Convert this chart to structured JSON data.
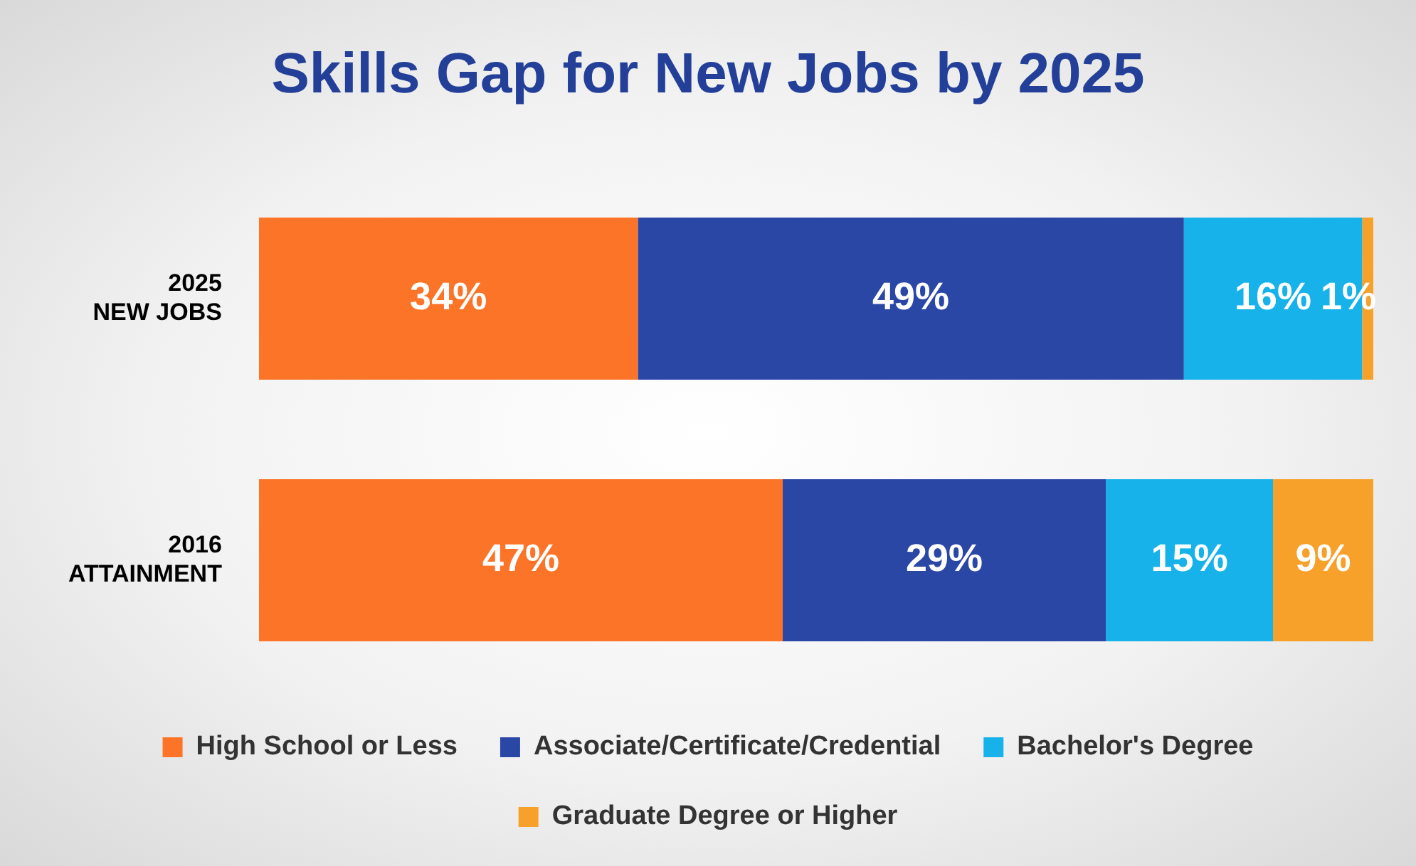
{
  "chart_data": {
    "type": "bar",
    "orientation": "horizontal",
    "stacked": true,
    "title": "Skills Gap for New Jobs by 2025",
    "categories": [
      "2025 NEW JOBS",
      "2016 ATTAINMENT"
    ],
    "series": [
      {
        "name": "High School or Less",
        "color": "#fb7428",
        "values": [
          34,
          47
        ],
        "value_labels": [
          "34%",
          "47%"
        ]
      },
      {
        "name": "Associate/Certificate/Credential",
        "color": "#2b47a6",
        "values": [
          49,
          29
        ],
        "value_labels": [
          "49%",
          "29%"
        ]
      },
      {
        "name": "Bachelor's Degree",
        "color": "#17b2ea",
        "values": [
          16,
          15
        ],
        "value_labels": [
          "16%",
          "15%"
        ]
      },
      {
        "name": "Graduate Degree or Higher",
        "color": "#f7a02a",
        "values": [
          1,
          9
        ],
        "value_labels": [
          "1%",
          "9%"
        ]
      }
    ],
    "legend": "bottom"
  }
}
